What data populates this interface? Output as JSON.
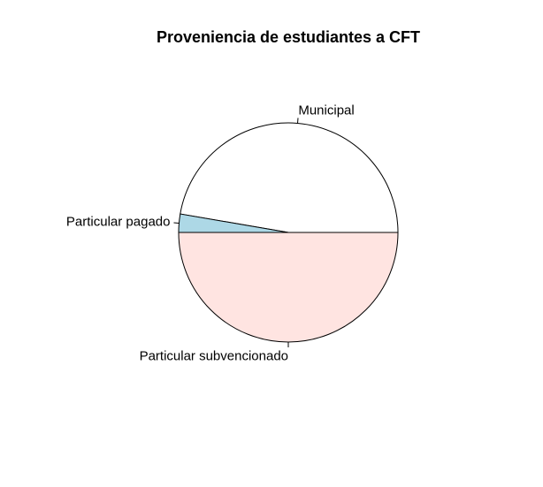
{
  "chart_data": {
    "type": "pie",
    "title": "Proveniencia de estudiantes a CFT",
    "slices": [
      {
        "label": "Municipal",
        "value": 47.3,
        "color": "#ffffff"
      },
      {
        "label": "Particular pagado",
        "value": 2.7,
        "color": "#add8e6"
      },
      {
        "label": "Particular subvencionado",
        "value": 50.0,
        "color": "#ffe4e1"
      }
    ],
    "start_angle_deg": 0,
    "direction": "counterclockwise",
    "border_color": "#000000",
    "legend": "none",
    "grid": false
  }
}
